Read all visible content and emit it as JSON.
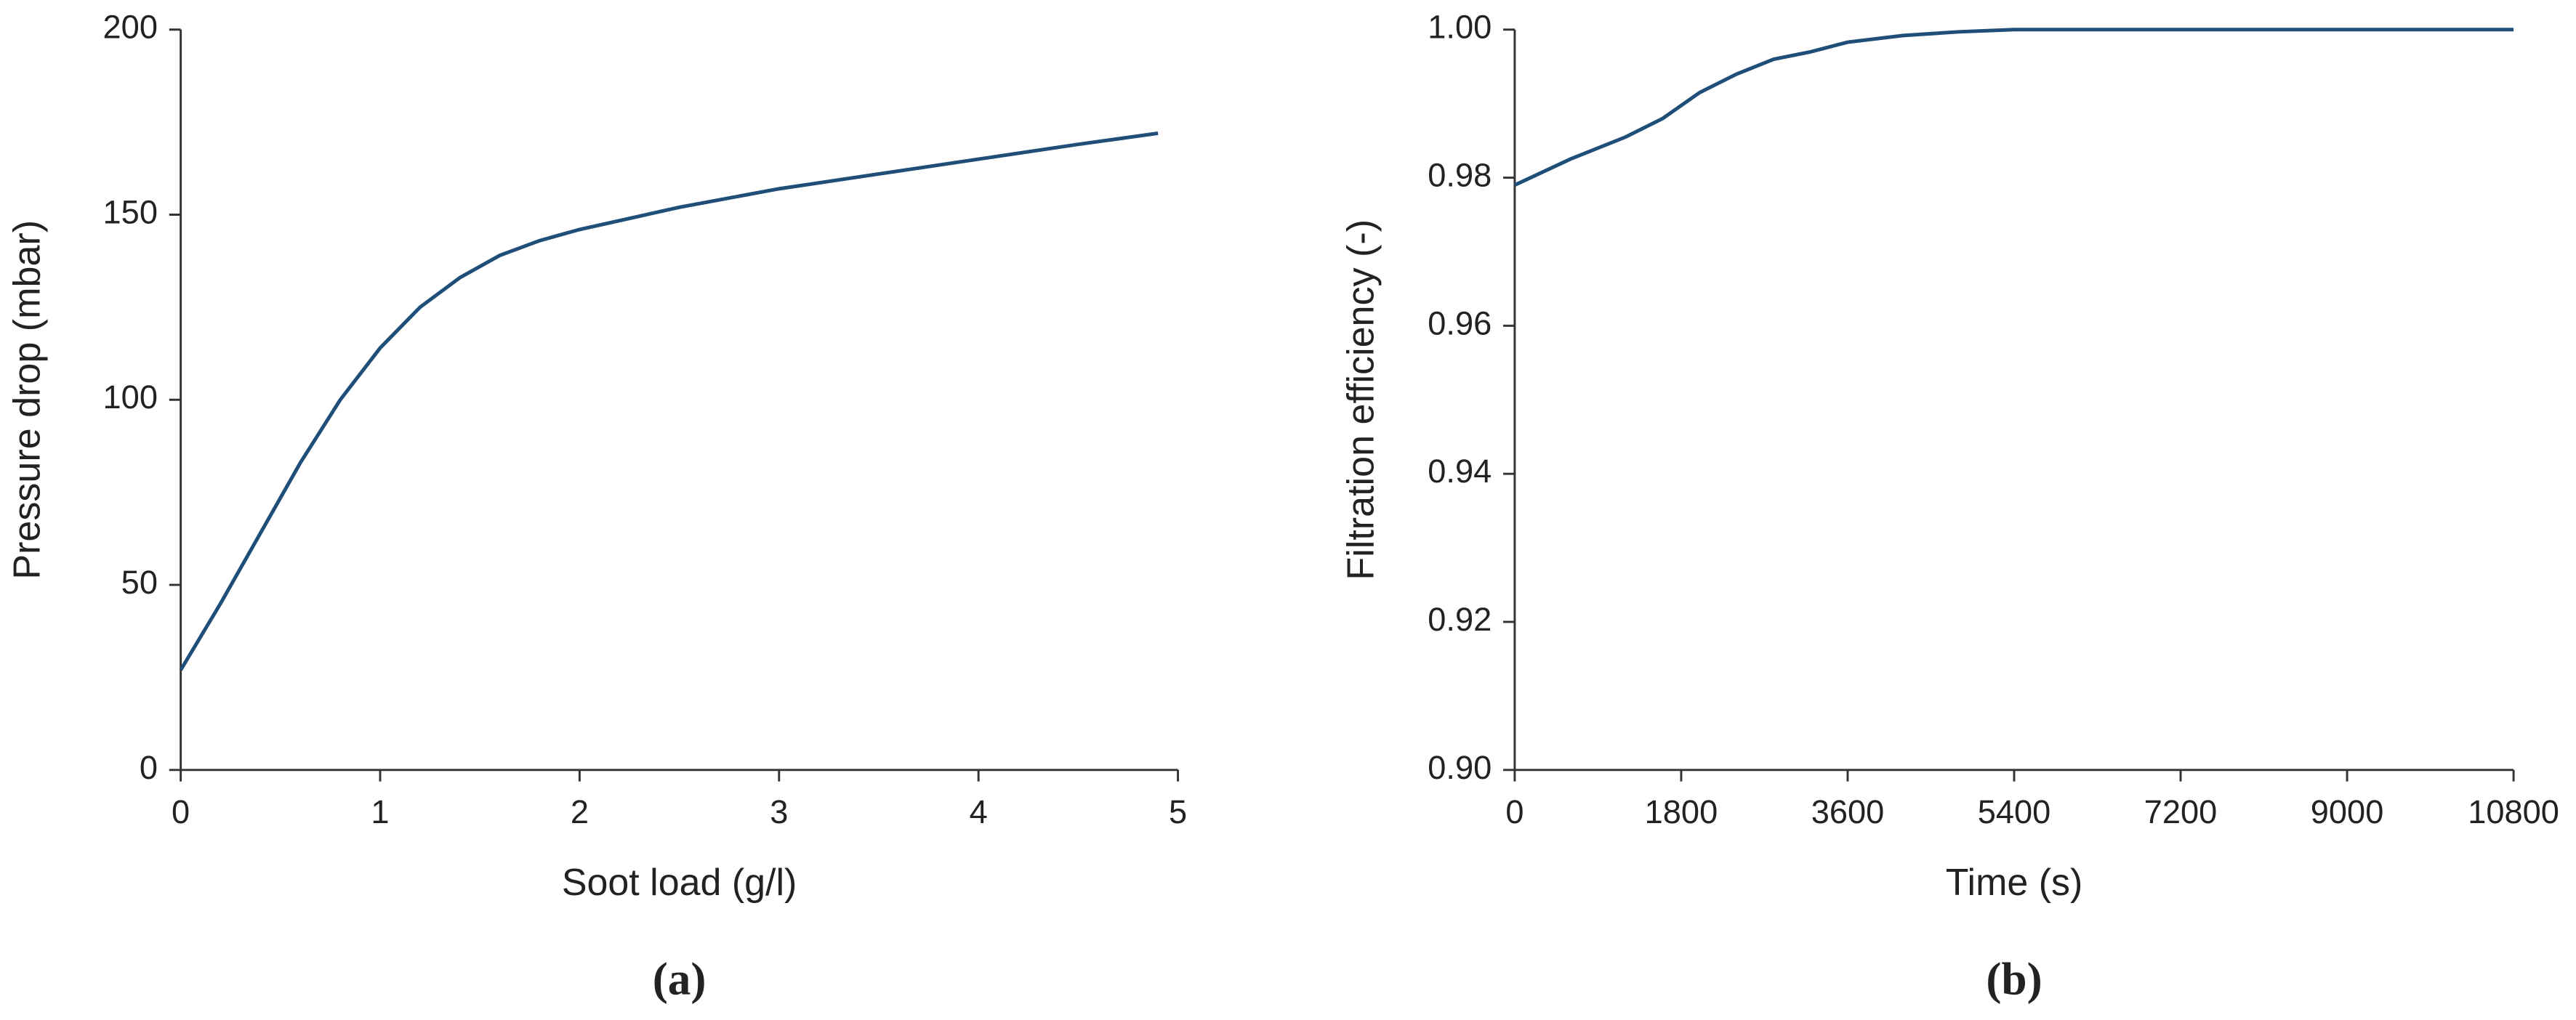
{
  "chart_data": [
    {
      "type": "line",
      "label": "(a)",
      "xlabel": "Soot load  (g/l)",
      "ylabel": "Pressure drop  (mbar)",
      "x": [
        0,
        0.2,
        0.4,
        0.6,
        0.8,
        1.0,
        1.2,
        1.4,
        1.6,
        1.8,
        2.0,
        2.5,
        3.0,
        3.5,
        4.0,
        4.5,
        4.9
      ],
      "series": [
        {
          "name": "Pressure drop",
          "color": "#1f4e79",
          "values": [
            27,
            45,
            64,
            83,
            100,
            114,
            125,
            133,
            139,
            143,
            146,
            152,
            157,
            161,
            165,
            169,
            172
          ]
        }
      ],
      "xlim": [
        0,
        5
      ],
      "xticks": [
        0,
        1,
        2,
        3,
        4,
        5
      ],
      "ylim": [
        0,
        200
      ],
      "yticks": [
        0,
        50,
        100,
        150,
        200
      ]
    },
    {
      "type": "line",
      "label": "(b)",
      "xlabel": "Time  (s)",
      "ylabel": "Filtration efficiency  (-)",
      "x": [
        0,
        600,
        1200,
        1600,
        2000,
        2400,
        2800,
        3200,
        3600,
        4200,
        4800,
        5400,
        7200,
        9000,
        10800
      ],
      "series": [
        {
          "name": "Filtration efficiency",
          "color": "#1f4e79",
          "values": [
            0.979,
            0.9825,
            0.9855,
            0.988,
            0.9915,
            0.994,
            0.996,
            0.997,
            0.9983,
            0.9992,
            0.9997,
            1.0,
            1.0,
            1.0,
            1.0
          ]
        }
      ],
      "xlim": [
        0,
        10800
      ],
      "xticks": [
        0,
        1800,
        3600,
        5400,
        7200,
        9000,
        10800
      ],
      "ylim": [
        0.9,
        1.0
      ],
      "yticks": [
        {
          "value": 0.9,
          "label": "0.90"
        },
        0.92,
        0.94,
        0.96,
        0.98,
        {
          "value": 1.0,
          "label": "1.00"
        }
      ]
    }
  ]
}
